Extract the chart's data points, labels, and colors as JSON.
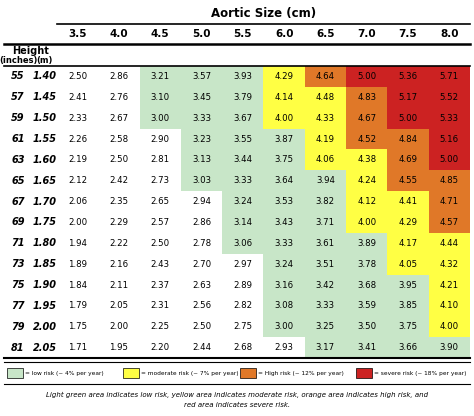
{
  "title": "Aortic Size (cm)",
  "col_headers": [
    "3.5",
    "4.0",
    "4.5",
    "5.0",
    "5.5",
    "6.0",
    "6.5",
    "7.0",
    "7.5",
    "8.0"
  ],
  "row_headers_inches": [
    "55",
    "57",
    "59",
    "61",
    "63",
    "65",
    "67",
    "69",
    "71",
    "73",
    "75",
    "77",
    "79",
    "81"
  ],
  "row_headers_m": [
    "1.40",
    "1.45",
    "1.50",
    "1.55",
    "1.60",
    "1.65",
    "1.70",
    "1.75",
    "1.80",
    "1.85",
    "1.90",
    "1.95",
    "2.00",
    "2.05"
  ],
  "values": [
    [
      2.5,
      2.86,
      3.21,
      3.57,
      3.93,
      4.29,
      4.64,
      5.0,
      5.36,
      5.71
    ],
    [
      2.41,
      2.76,
      3.1,
      3.45,
      3.79,
      4.14,
      4.48,
      4.83,
      5.17,
      5.52
    ],
    [
      2.33,
      2.67,
      3.0,
      3.33,
      3.67,
      4.0,
      4.33,
      4.67,
      5.0,
      5.33
    ],
    [
      2.26,
      2.58,
      2.9,
      3.23,
      3.55,
      3.87,
      4.19,
      4.52,
      4.84,
      5.16
    ],
    [
      2.19,
      2.5,
      2.81,
      3.13,
      3.44,
      3.75,
      4.06,
      4.38,
      4.69,
      5.0
    ],
    [
      2.12,
      2.42,
      2.73,
      3.03,
      3.33,
      3.64,
      3.94,
      4.24,
      4.55,
      4.85
    ],
    [
      2.06,
      2.35,
      2.65,
      2.94,
      3.24,
      3.53,
      3.82,
      4.12,
      4.41,
      4.71
    ],
    [
      2.0,
      2.29,
      2.57,
      2.86,
      3.14,
      3.43,
      3.71,
      4.0,
      4.29,
      4.57
    ],
    [
      1.94,
      2.22,
      2.5,
      2.78,
      3.06,
      3.33,
      3.61,
      3.89,
      4.17,
      4.44
    ],
    [
      1.89,
      2.16,
      2.43,
      2.7,
      2.97,
      3.24,
      3.51,
      3.78,
      4.05,
      4.32
    ],
    [
      1.84,
      2.11,
      2.37,
      2.63,
      2.89,
      3.16,
      3.42,
      3.68,
      3.95,
      4.21
    ],
    [
      1.79,
      2.05,
      2.31,
      2.56,
      2.82,
      3.08,
      3.33,
      3.59,
      3.85,
      4.1
    ],
    [
      1.75,
      2.0,
      2.25,
      2.5,
      2.75,
      3.0,
      3.25,
      3.5,
      3.75,
      4.0
    ],
    [
      1.71,
      1.95,
      2.2,
      2.44,
      2.68,
      2.93,
      3.17,
      3.41,
      3.66,
      3.9
    ]
  ],
  "color_white": "#ffffff",
  "color_low": "#c8e6c8",
  "color_moderate": "#ffff44",
  "color_high": "#e07828",
  "color_severe": "#cc2222",
  "legend_colors": [
    "#c8e6c8",
    "#ffff44",
    "#e07828",
    "#cc2222"
  ],
  "legend_labels": [
    "= low risk (~ 4% per year)",
    "= moderate risk (~ 7% per year)",
    "= High risk (~ 12% per year)",
    "= severe risk (~ 18% per year)"
  ],
  "footnote_line1": "Light green area indicates low risk, yellow area indicates moderate risk, orange area indicates high risk, and",
  "footnote_line2": "red area indicates severe risk."
}
